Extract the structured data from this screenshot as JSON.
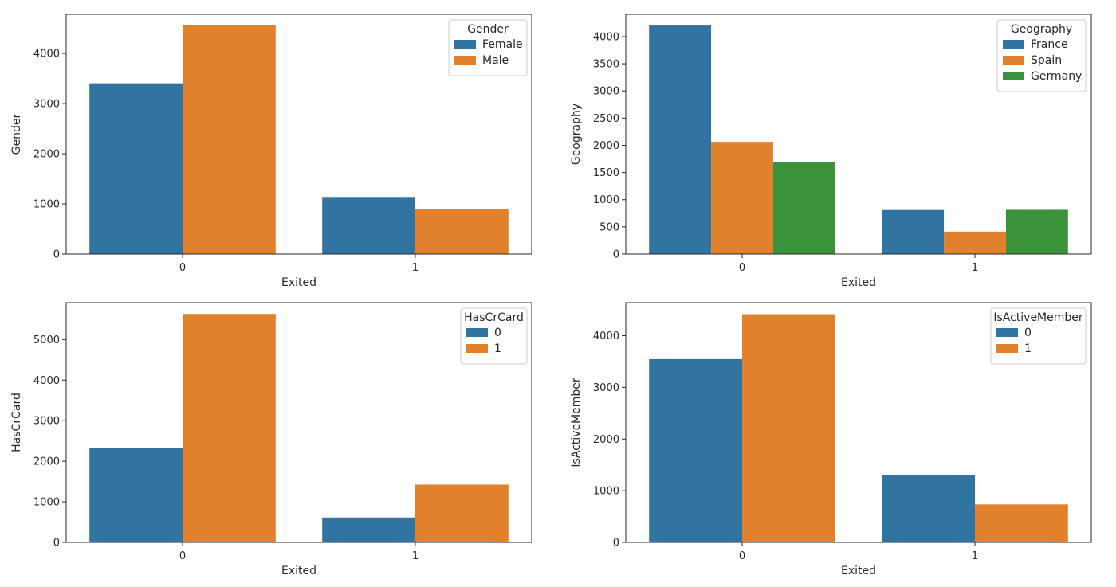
{
  "chart_data": [
    {
      "type": "bar",
      "xlabel": "Exited",
      "ylabel": "Gender",
      "categories": [
        "0",
        "1"
      ],
      "series": [
        {
          "name": "Female",
          "color": "#3274a1",
          "values": [
            3404,
            1139
          ]
        },
        {
          "name": "Male",
          "color": "#e1812c",
          "values": [
            4559,
            898
          ]
        }
      ],
      "ylim": [
        0,
        4780
      ],
      "yticks": [
        0,
        1000,
        2000,
        3000,
        4000
      ],
      "legend": {
        "title": "Gender",
        "placement": "top-right"
      },
      "grid": false
    },
    {
      "type": "bar",
      "xlabel": "Exited",
      "ylabel": "Geography",
      "categories": [
        "0",
        "1"
      ],
      "series": [
        {
          "name": "France",
          "color": "#3274a1",
          "values": [
            4204,
            810
          ]
        },
        {
          "name": "Spain",
          "color": "#e1812c",
          "values": [
            2064,
            413
          ]
        },
        {
          "name": "Germany",
          "color": "#3a923a",
          "values": [
            1695,
            814
          ]
        }
      ],
      "ylim": [
        0,
        4410
      ],
      "yticks": [
        0,
        500,
        1000,
        1500,
        2000,
        2500,
        3000,
        3500,
        4000
      ],
      "legend": {
        "title": "Geography",
        "placement": "top-right"
      },
      "grid": false
    },
    {
      "type": "bar",
      "xlabel": "Exited",
      "ylabel": "HasCrCard",
      "categories": [
        "0",
        "1"
      ],
      "series": [
        {
          "name": "0",
          "color": "#3274a1",
          "values": [
            2332,
            613
          ]
        },
        {
          "name": "1",
          "color": "#e1812c",
          "values": [
            5631,
            1424
          ]
        }
      ],
      "ylim": [
        0,
        5910
      ],
      "yticks": [
        0,
        1000,
        2000,
        3000,
        4000,
        5000
      ],
      "legend": {
        "title": "HasCrCard",
        "placement": "top-right"
      },
      "grid": false
    },
    {
      "type": "bar",
      "xlabel": "Exited",
      "ylabel": "IsActiveMember",
      "categories": [
        "0",
        "1"
      ],
      "series": [
        {
          "name": "0",
          "color": "#3274a1",
          "values": [
            3547,
            1302
          ]
        },
        {
          "name": "1",
          "color": "#e1812c",
          "values": [
            4416,
            735
          ]
        }
      ],
      "ylim": [
        0,
        4640
      ],
      "yticks": [
        0,
        1000,
        2000,
        3000,
        4000
      ],
      "legend": {
        "title": "IsActiveMember",
        "placement": "top-right"
      },
      "grid": false
    }
  ]
}
